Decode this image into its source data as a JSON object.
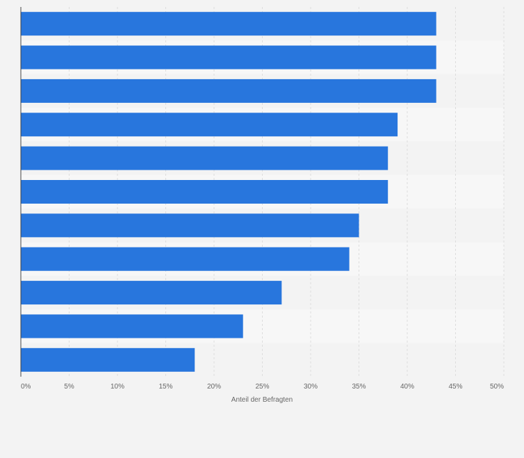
{
  "chart_data": {
    "type": "bar",
    "orientation": "horizontal",
    "title": "",
    "xlabel": "Anteil der Befragten",
    "ylabel": "",
    "categories": [
      "",
      "",
      "",
      "",
      "",
      "",
      "",
      "",
      "",
      "",
      ""
    ],
    "values": [
      43,
      43,
      43,
      39,
      38,
      38,
      35,
      34,
      27,
      23,
      18
    ],
    "xlim": [
      0,
      50
    ],
    "x_ticks": [
      "0%",
      "5%",
      "10%",
      "15%",
      "20%",
      "25%",
      "30%",
      "35%",
      "40%",
      "45%",
      "50%"
    ],
    "grid": true,
    "legend": "none"
  },
  "colors": {
    "bar": "#2876dd",
    "band_dark": "#f3f3f3",
    "band_light": "#f7f7f7",
    "grid": "#dddddd",
    "axis": "#444444",
    "text": "#666666"
  }
}
